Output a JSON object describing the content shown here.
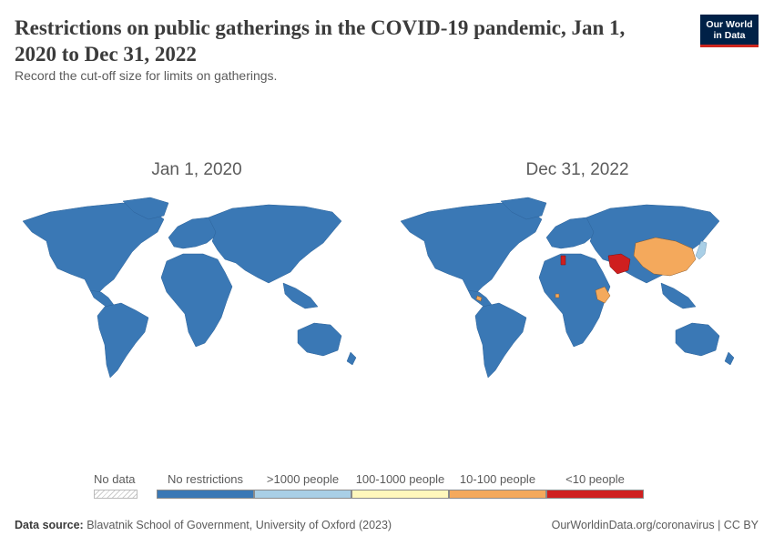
{
  "header": {
    "title": "Restrictions on public gatherings in the COVID-19 pandemic, Jan 1, 2020 to Dec 31, 2022",
    "subtitle": "Record the cut-off size for limits on gatherings."
  },
  "logo": {
    "line1": "Our World",
    "line2": "in Data"
  },
  "maps": {
    "left_title": "Jan 1, 2020",
    "right_title": "Dec 31, 2022"
  },
  "legend": {
    "no_data": "No data",
    "items": [
      {
        "label": "No restrictions",
        "color": "#3a78b5"
      },
      {
        "label": ">1000 people",
        "color": "#a9cfe6"
      },
      {
        "label": "100-1000 people",
        "color": "#fff7bc"
      },
      {
        "label": "10-100 people",
        "color": "#f4a95c"
      },
      {
        "label": "<10 people",
        "color": "#cf1f1f"
      }
    ]
  },
  "footer": {
    "source_label": "Data source:",
    "source_text": "Blavatnik School of Government, University of Oxford (2023)",
    "right_text": "OurWorldinData.org/coronavirus | CC BY"
  }
}
